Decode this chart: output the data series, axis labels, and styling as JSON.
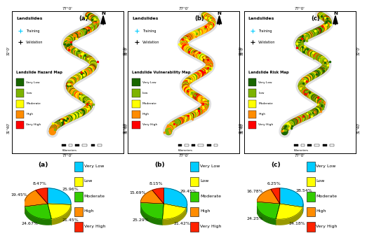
{
  "map_titles": [
    "(a)",
    "(b)",
    "(c)"
  ],
  "map_subtitles": [
    "Landslide Hazard Map",
    "Landslide Vulnerability Map",
    "Landslide Risk Map"
  ],
  "map_top_labels": [
    "77°0'",
    "77°0'",
    "77°0'"
  ],
  "map_bottom_labels": [
    "77°0'",
    "77°0'",
    "77°0'"
  ],
  "map_left_top": [
    "32°0'",
    "32°0'",
    "32°0'"
  ],
  "map_left_bot": [
    "31°40'",
    "31°40'",
    "31°40'"
  ],
  "pie_labels": [
    "(a)",
    "(b)",
    "(c)"
  ],
  "categories": [
    "Very Low",
    "Low",
    "Moderate",
    "High",
    "Very High"
  ],
  "legend_colors": [
    "#1a6600",
    "#7db300",
    "#ffff00",
    "#ff8c00",
    "#ff0000"
  ],
  "pie_colors": [
    "#00ccff",
    "#ffff00",
    "#33cc00",
    "#ff8c00",
    "#ff2200"
  ],
  "pie_a": [
    25.96,
    21.45,
    24.67,
    19.45,
    8.47
  ],
  "pie_b": [
    29.45,
    21.42,
    25.29,
    15.69,
    8.15
  ],
  "pie_c": [
    28.54,
    24.18,
    24.25,
    16.78,
    6.25
  ],
  "pie_a_labels": [
    "25.96%",
    "21.45%",
    "24.67%",
    "19.45%",
    "8.47%"
  ],
  "pie_b_labels": [
    "29.45%",
    "21.42%",
    "25.29%",
    "15.69%",
    "8.15%"
  ],
  "pie_c_labels": [
    "28.54%",
    "24.18%",
    "24.25%",
    "16.78%",
    "6.25%"
  ],
  "bg_color": "#FFFFFF",
  "map_corridor_colors_a": [
    "#1a6600",
    "#7db300",
    "#ffff00",
    "#ff8c00",
    "#ff2200"
  ],
  "map_corridor_colors_b": [
    "#1a6600",
    "#7db300",
    "#ffff00",
    "#ff8c00",
    "#ff2200"
  ],
  "map_corridor_colors_c": [
    "#1a6600",
    "#7db300",
    "#ffff00",
    "#ff8c00",
    "#ff2200"
  ],
  "map_weights_a": [
    0.2,
    0.25,
    0.25,
    0.2,
    0.1
  ],
  "map_weights_b": [
    0.05,
    0.15,
    0.35,
    0.25,
    0.2
  ],
  "map_weights_c": [
    0.3,
    0.3,
    0.2,
    0.12,
    0.08
  ]
}
